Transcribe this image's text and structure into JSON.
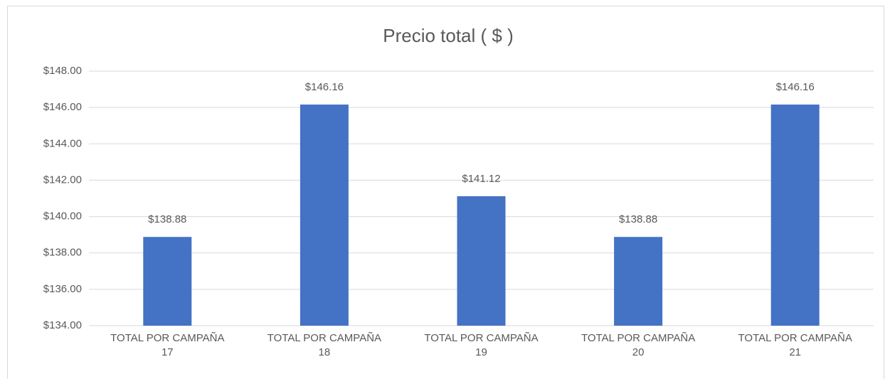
{
  "chart_data": {
    "type": "bar",
    "title": "Precio total ( $ )",
    "categories": [
      "TOTAL POR CAMPAÑA\n17",
      "TOTAL POR CAMPAÑA\n18",
      "TOTAL POR CAMPAÑA\n19",
      "TOTAL POR CAMPAÑA\n20",
      "TOTAL POR CAMPAÑA\n21"
    ],
    "values": [
      138.88,
      146.16,
      141.12,
      138.88,
      146.16
    ],
    "value_labels": [
      "$138.88",
      "$146.16",
      "$141.12",
      "$138.88",
      "$146.16"
    ],
    "color": "#4472c4",
    "ylim": [
      134,
      148
    ],
    "yticks": [
      {
        "value": 134,
        "label": "$134.00"
      },
      {
        "value": 136,
        "label": "$136.00"
      },
      {
        "value": 138,
        "label": "$138.00"
      },
      {
        "value": 140,
        "label": "$140.00"
      },
      {
        "value": 142,
        "label": "$142.00"
      },
      {
        "value": 144,
        "label": "$144.00"
      },
      {
        "value": 146,
        "label": "$146.00"
      },
      {
        "value": 148,
        "label": "$148.00"
      }
    ],
    "grid": true
  }
}
